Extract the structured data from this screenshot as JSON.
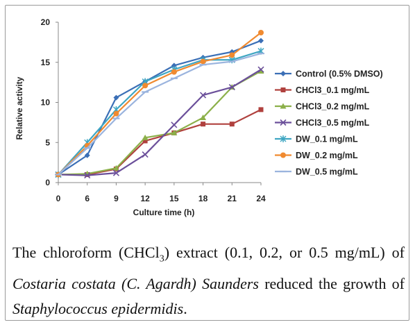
{
  "chart_data": {
    "type": "line",
    "title": "",
    "xlabel": "Culture time (h)",
    "ylabel": "Relative activity",
    "x": [
      0,
      6,
      9,
      12,
      15,
      18,
      21,
      24
    ],
    "xlim": [
      0,
      24
    ],
    "ylim": [
      0,
      20
    ],
    "yticks": [
      0,
      5,
      10,
      15,
      20
    ],
    "grid": false,
    "legend_position": "right",
    "series": [
      {
        "name": "Control (0.5% DMSO)",
        "color": "#3b6fb6",
        "marker": "diamond",
        "values": [
          1.0,
          3.4,
          10.6,
          12.6,
          14.6,
          15.6,
          16.3,
          17.7
        ]
      },
      {
        "name": "CHCl3_0.1 mg/mL",
        "color": "#b0413e",
        "marker": "square",
        "values": [
          1.0,
          1.0,
          1.7,
          5.2,
          6.2,
          7.3,
          7.3,
          9.1
        ]
      },
      {
        "name": "CHCl3_0.2 mg/mL",
        "color": "#8cb04a",
        "marker": "triangle",
        "values": [
          1.0,
          1.1,
          1.8,
          5.6,
          6.2,
          8.1,
          11.9,
          13.9
        ]
      },
      {
        "name": "CHCl3_0.5 mg/mL",
        "color": "#6b4f9a",
        "marker": "x",
        "values": [
          1.0,
          0.9,
          1.2,
          3.5,
          7.2,
          10.9,
          11.9,
          14.1
        ]
      },
      {
        "name": "DW_0.1 mg/mL",
        "color": "#3fa6c2",
        "marker": "star",
        "values": [
          1.0,
          5.0,
          9.1,
          12.6,
          14.1,
          15.3,
          15.3,
          16.4
        ]
      },
      {
        "name": "DW_0.2 mg/mL",
        "color": "#f08a30",
        "marker": "circle",
        "values": [
          1.0,
          4.6,
          8.6,
          12.1,
          13.8,
          15.1,
          15.9,
          18.7
        ]
      },
      {
        "name": "DW_0.5 mg/mL",
        "color": "#9bb4de",
        "marker": "dash",
        "values": [
          1.0,
          4.3,
          8.0,
          11.3,
          13.0,
          14.7,
          15.1,
          16.1
        ]
      }
    ]
  },
  "caption": {
    "part1": "The chloroform (CHCl",
    "sub": "3",
    "part2": ") extract (0.1, 0.2, or 0.5 mg/mL) of ",
    "species": "Costaria costata (C. Agardh) Saunders",
    "part3": " reduced the growth of ",
    "organism": "Staphylococcus epidermidis",
    "end": "."
  }
}
